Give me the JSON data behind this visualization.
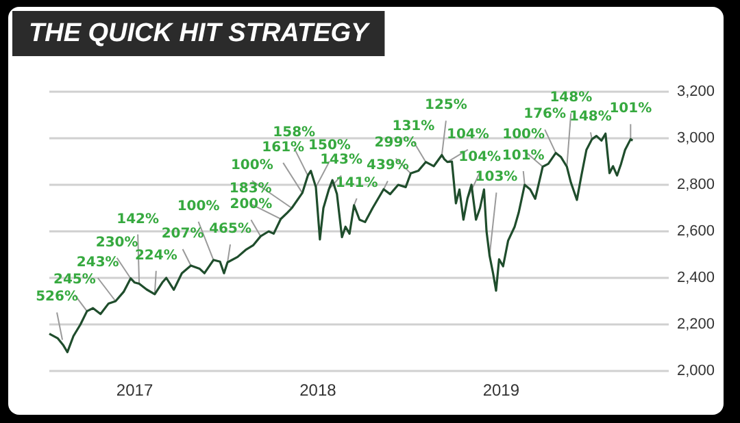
{
  "chart_data": {
    "type": "line",
    "title": "THE QUICK HIT STRATEGY",
    "x": [
      "2016-07-15",
      "2016-08-01",
      "2016-08-12",
      "2016-08-20",
      "2016-09-01",
      "2016-09-15",
      "2016-09-28",
      "2016-10-10",
      "2016-10-25",
      "2016-11-10",
      "2016-11-24",
      "2016-12-10",
      "2016-12-24",
      "2017-01-01",
      "2017-01-10",
      "2017-01-25",
      "2017-02-10",
      "2017-02-25",
      "2017-03-05",
      "2017-03-20",
      "2017-04-05",
      "2017-04-23",
      "2017-05-10",
      "2017-05-20",
      "2017-06-07",
      "2017-06-20",
      "2017-06-28",
      "2017-07-05",
      "2017-07-25",
      "2017-08-10",
      "2017-08-25",
      "2017-09-09",
      "2017-09-25",
      "2017-10-05",
      "2017-10-19",
      "2017-11-01",
      "2017-11-10",
      "2017-12-01",
      "2017-12-12",
      "2017-12-18",
      "2017-12-28",
      "2018-01-05",
      "2018-01-12",
      "2018-01-23",
      "2018-01-30",
      "2018-02-08",
      "2018-02-18",
      "2018-02-25",
      "2018-03-05",
      "2018-03-14",
      "2018-03-25",
      "2018-04-05",
      "2018-04-20",
      "2018-05-12",
      "2018-05-25",
      "2018-06-10",
      "2018-06-25",
      "2018-07-05",
      "2018-07-20",
      "2018-08-04",
      "2018-08-20",
      "2018-09-05",
      "2018-09-10",
      "2018-09-16",
      "2018-09-25",
      "2018-10-03",
      "2018-10-10",
      "2018-10-18",
      "2018-10-26",
      "2018-11-03",
      "2018-11-12",
      "2018-11-20",
      "2018-11-28",
      "2018-12-03",
      "2018-12-09",
      "2018-12-16",
      "2018-12-22",
      "2018-12-28",
      "2019-01-05",
      "2019-01-15",
      "2019-01-28",
      "2019-02-05",
      "2019-02-17",
      "2019-02-28",
      "2019-03-10",
      "2019-03-25",
      "2019-04-05",
      "2019-04-20",
      "2019-04-30",
      "2019-05-12",
      "2019-05-20",
      "2019-06-01",
      "2019-06-10",
      "2019-06-20",
      "2019-07-01",
      "2019-07-10",
      "2019-07-20",
      "2019-07-28",
      "2019-08-05",
      "2019-08-12",
      "2019-08-20",
      "2019-08-28",
      "2019-09-05",
      "2019-09-16",
      "2019-09-20"
    ],
    "series": [
      {
        "color": "#1f4d2c",
        "values": [
          2160,
          2140,
          2110,
          2081,
          2150,
          2200,
          2257,
          2270,
          2245,
          2290,
          2300,
          2340,
          2398,
          2380,
          2375,
          2350,
          2330,
          2380,
          2400,
          2349,
          2420,
          2453,
          2440,
          2420,
          2477,
          2470,
          2420,
          2467,
          2490,
          2520,
          2540,
          2579,
          2600,
          2590,
          2653,
          2680,
          2700,
          2765,
          2840,
          2860,
          2790,
          2565,
          2700,
          2781,
          2820,
          2760,
          2575,
          2620,
          2590,
          2712,
          2650,
          2640,
          2700,
          2781,
          2760,
          2800,
          2790,
          2849,
          2860,
          2898,
          2880,
          2928,
          2910,
          2898,
          2900,
          2720,
          2780,
          2650,
          2741,
          2800,
          2650,
          2700,
          2780,
          2600,
          2496,
          2420,
          2345,
          2480,
          2450,
          2560,
          2620,
          2680,
          2800,
          2780,
          2740,
          2878,
          2890,
          2937,
          2920,
          2878,
          2810,
          2735,
          2840,
          2950,
          2996,
          3010,
          2990,
          3020,
          2850,
          2880,
          2840,
          2890,
          2950,
          2996,
          2990
        ]
      }
    ],
    "xlim": [
      "2016-07-15",
      "2019-12-01"
    ],
    "xticks": [
      {
        "value": "2017-01-01",
        "label": "2017"
      },
      {
        "value": "2018-01-01",
        "label": "2018"
      },
      {
        "value": "2019-01-01",
        "label": "2019"
      }
    ],
    "ylim": [
      2000,
      3200
    ],
    "yticks": [
      {
        "value": 2000,
        "label": "2,000"
      },
      {
        "value": 2200,
        "label": "2,200"
      },
      {
        "value": 2400,
        "label": "2,400"
      },
      {
        "value": 2600,
        "label": "2,600"
      },
      {
        "value": 2800,
        "label": "2,800"
      },
      {
        "value": 3000,
        "label": "3,000"
      },
      {
        "value": 3200,
        "label": "3,200"
      }
    ],
    "grid": "y",
    "annotations": [
      {
        "text": "526%",
        "x": "2016-08-10",
        "y": 2134
      },
      {
        "text": "245%",
        "x": "2016-09-28",
        "y": 2257
      },
      {
        "text": "243%",
        "x": "2016-11-24",
        "y": 2300
      },
      {
        "text": "230%",
        "x": "2016-12-24",
        "y": 2398
      },
      {
        "text": "142%",
        "x": "2017-01-10",
        "y": 2375
      },
      {
        "text": "224%",
        "x": "2017-02-10",
        "y": 2330
      },
      {
        "text": "207%",
        "x": "2017-04-23",
        "y": 2453
      },
      {
        "text": "100%",
        "x": "2017-06-07",
        "y": 2477
      },
      {
        "text": "465%",
        "x": "2017-07-05",
        "y": 2467
      },
      {
        "text": "200%",
        "x": "2017-09-09",
        "y": 2579
      },
      {
        "text": "183%",
        "x": "2017-10-19",
        "y": 2653
      },
      {
        "text": "100%",
        "x": "2017-11-10",
        "y": 2700
      },
      {
        "text": "161%",
        "x": "2017-12-01",
        "y": 2765
      },
      {
        "text": "158%",
        "x": "2017-12-12",
        "y": 2840
      },
      {
        "text": "150%",
        "x": "2017-12-28",
        "y": 2790
      },
      {
        "text": "143%",
        "x": "2018-01-23",
        "y": 2781
      },
      {
        "text": "141%",
        "x": "2018-03-14",
        "y": 2712
      },
      {
        "text": "439%",
        "x": "2018-05-12",
        "y": 2781
      },
      {
        "text": "299%",
        "x": "2018-07-05",
        "y": 2849
      },
      {
        "text": "131%",
        "x": "2018-08-04",
        "y": 2898
      },
      {
        "text": "125%",
        "x": "2018-09-05",
        "y": 2928
      },
      {
        "text": "104%",
        "x": "2018-09-16",
        "y": 2898
      },
      {
        "text": "104%",
        "x": "2018-10-26",
        "y": 2741
      },
      {
        "text": "103%",
        "x": "2018-12-09",
        "y": 2496
      },
      {
        "text": "101%",
        "x": "2019-02-17",
        "y": 2800
      },
      {
        "text": "100%",
        "x": "2019-03-25",
        "y": 2878
      },
      {
        "text": "176%",
        "x": "2019-04-20",
        "y": 2937
      },
      {
        "text": "148%",
        "x": "2019-05-12",
        "y": 2878
      },
      {
        "text": "148%",
        "x": "2019-07-01",
        "y": 2996
      },
      {
        "text": "101%",
        "x": "2019-09-16",
        "y": 2996
      }
    ]
  }
}
